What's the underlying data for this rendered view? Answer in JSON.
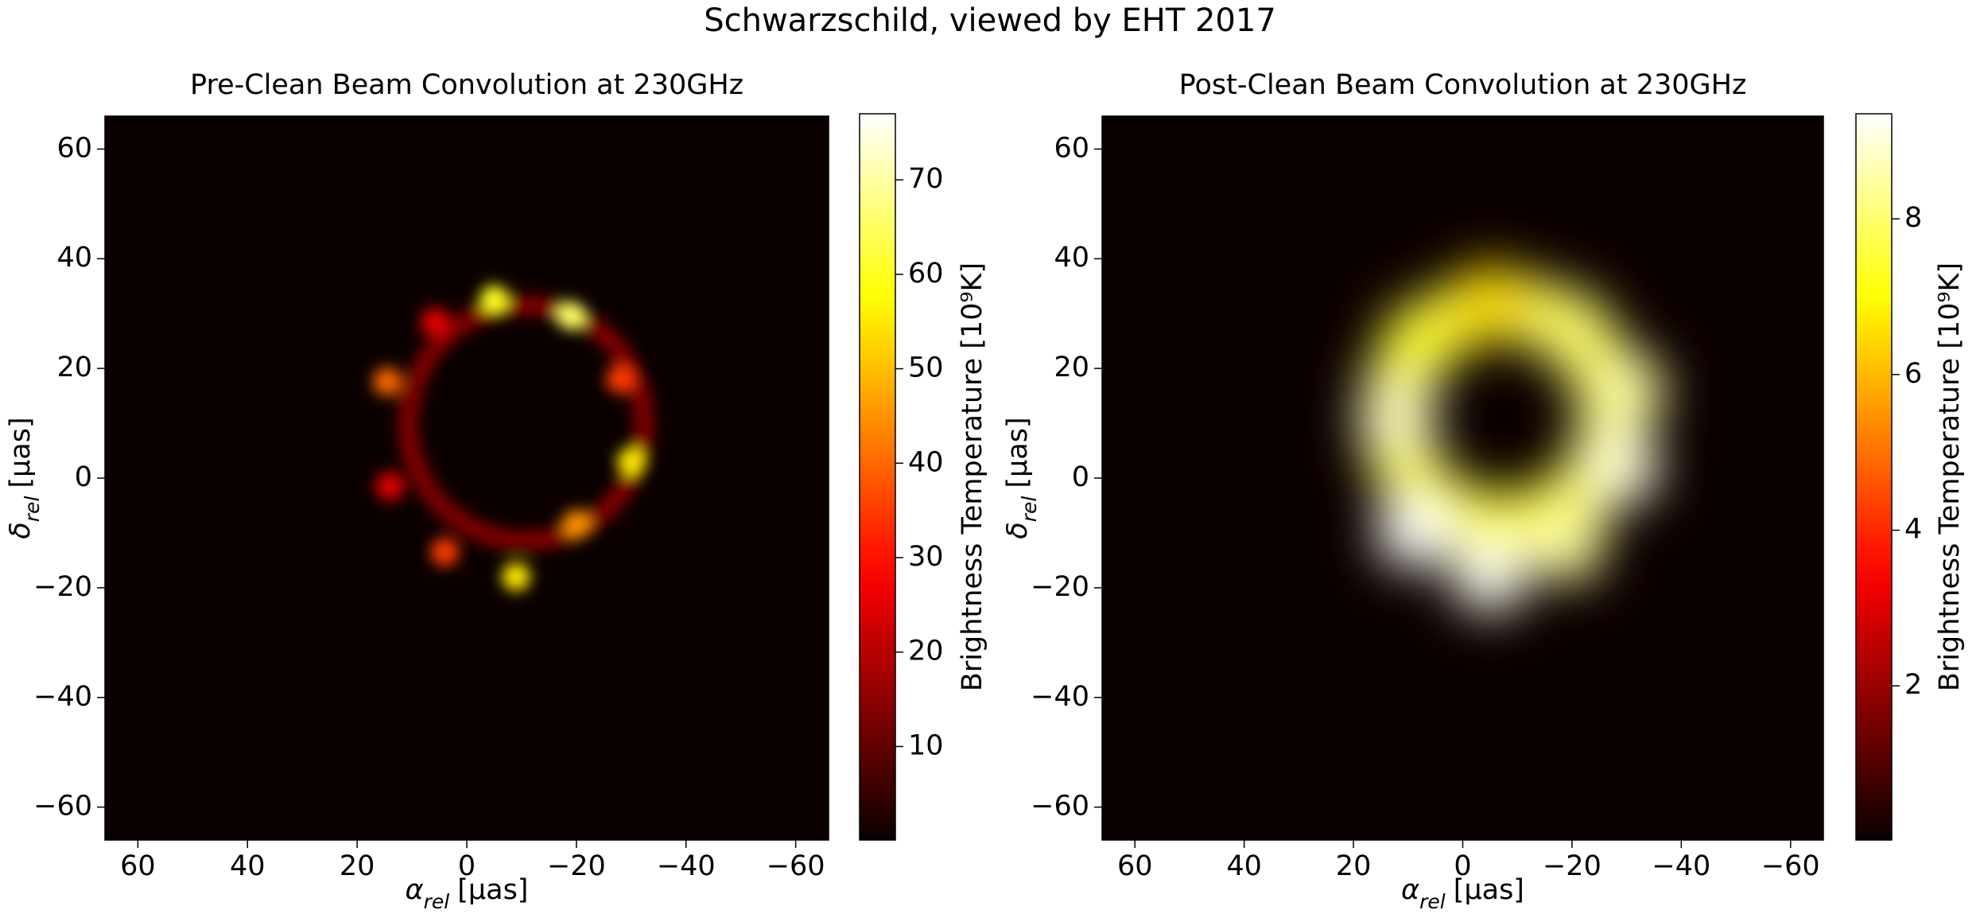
{
  "title": "Schwarzschild, viewed by EHT 2017",
  "chart_data": [
    {
      "type": "image",
      "title": "Pre-Clean Beam Convolution at 230GHz",
      "xlabel": {
        "symbol": "α",
        "subscript": "rel",
        "unit": "[μas]"
      },
      "ylabel": {
        "symbol": "δ",
        "subscript": "rel",
        "unit": "[μas]"
      },
      "xlim": [
        66,
        -66
      ],
      "ylim": [
        -66,
        66
      ],
      "xticks": [
        60,
        40,
        20,
        0,
        {
          "value": -20,
          "label": "−20"
        },
        {
          "value": -40,
          "label": "−40"
        },
        {
          "value": -60,
          "label": "−60"
        }
      ],
      "yticks": [
        {
          "value": -60,
          "label": "−60"
        },
        {
          "value": -40,
          "label": "−40"
        },
        {
          "value": -20,
          "label": "−20"
        },
        0,
        20,
        40,
        60
      ],
      "colormap": "hot",
      "colorbar": {
        "label": "Brightness Temperature [10⁹K]",
        "lim": [
          0.1,
          77
        ],
        "ticks": [
          10,
          20,
          30,
          40,
          50,
          60,
          70
        ]
      },
      "ring": {
        "x": -10.8,
        "y": 10,
        "radius": 21.5,
        "value": 14
      },
      "spots": [
        {
          "x": -5,
          "y": 32.6,
          "value": 60
        },
        {
          "x": -19,
          "y": 29.6,
          "value": 65
        },
        {
          "x": -28,
          "y": 18,
          "value": 35
        },
        {
          "x": -30,
          "y": 3,
          "value": 55
        },
        {
          "x": -20,
          "y": -8.4,
          "value": 45
        },
        {
          "x": -9,
          "y": -18,
          "value": 55
        },
        {
          "x": 4,
          "y": -13.5,
          "value": 35
        },
        {
          "x": 14,
          "y": -1.5,
          "value": 25
        },
        {
          "x": 14.5,
          "y": 17.6,
          "value": 40
        },
        {
          "x": 5.8,
          "y": 28.5,
          "value": 25
        }
      ]
    },
    {
      "type": "image",
      "title": "Post-Clean Beam Convolution at 230GHz",
      "xlabel": {
        "symbol": "α",
        "subscript": "rel",
        "unit": "[μas]"
      },
      "ylabel": {
        "symbol": "δ",
        "subscript": "rel",
        "unit": "[μas]"
      },
      "xlim": [
        66,
        -66
      ],
      "ylim": [
        -66,
        66
      ],
      "xticks": [
        60,
        40,
        20,
        0,
        {
          "value": -20,
          "label": "−20"
        },
        {
          "value": -40,
          "label": "−40"
        },
        {
          "value": -60,
          "label": "−60"
        }
      ],
      "yticks": [
        {
          "value": -60,
          "label": "−60"
        },
        {
          "value": -40,
          "label": "−40"
        },
        {
          "value": -20,
          "label": "−20"
        },
        0,
        20,
        40,
        60
      ],
      "colormap": "hot",
      "colorbar": {
        "label": "Brightness Temperature [10⁹K]",
        "lim": [
          0.02,
          9.35
        ],
        "ticks": [
          2,
          4,
          6,
          8
        ]
      },
      "ring": {
        "x": -7.4,
        "y": 11.2,
        "radius": 20,
        "value": 7.5
      },
      "spots": [
        {
          "x": -5,
          "y": 32,
          "value": 6.5
        },
        {
          "x": -20,
          "y": 27,
          "value": 8
        },
        {
          "x": -30,
          "y": 16,
          "value": 8.5
        },
        {
          "x": -29,
          "y": 2,
          "value": 9
        },
        {
          "x": -19,
          "y": -12,
          "value": 8.5
        },
        {
          "x": -5,
          "y": -17.6,
          "value": 9.2
        },
        {
          "x": 8.8,
          "y": -9.6,
          "value": 9.3
        },
        {
          "x": 12,
          "y": 11,
          "value": 8.8
        },
        {
          "x": 7.6,
          "y": 25,
          "value": 7.5
        }
      ]
    }
  ]
}
